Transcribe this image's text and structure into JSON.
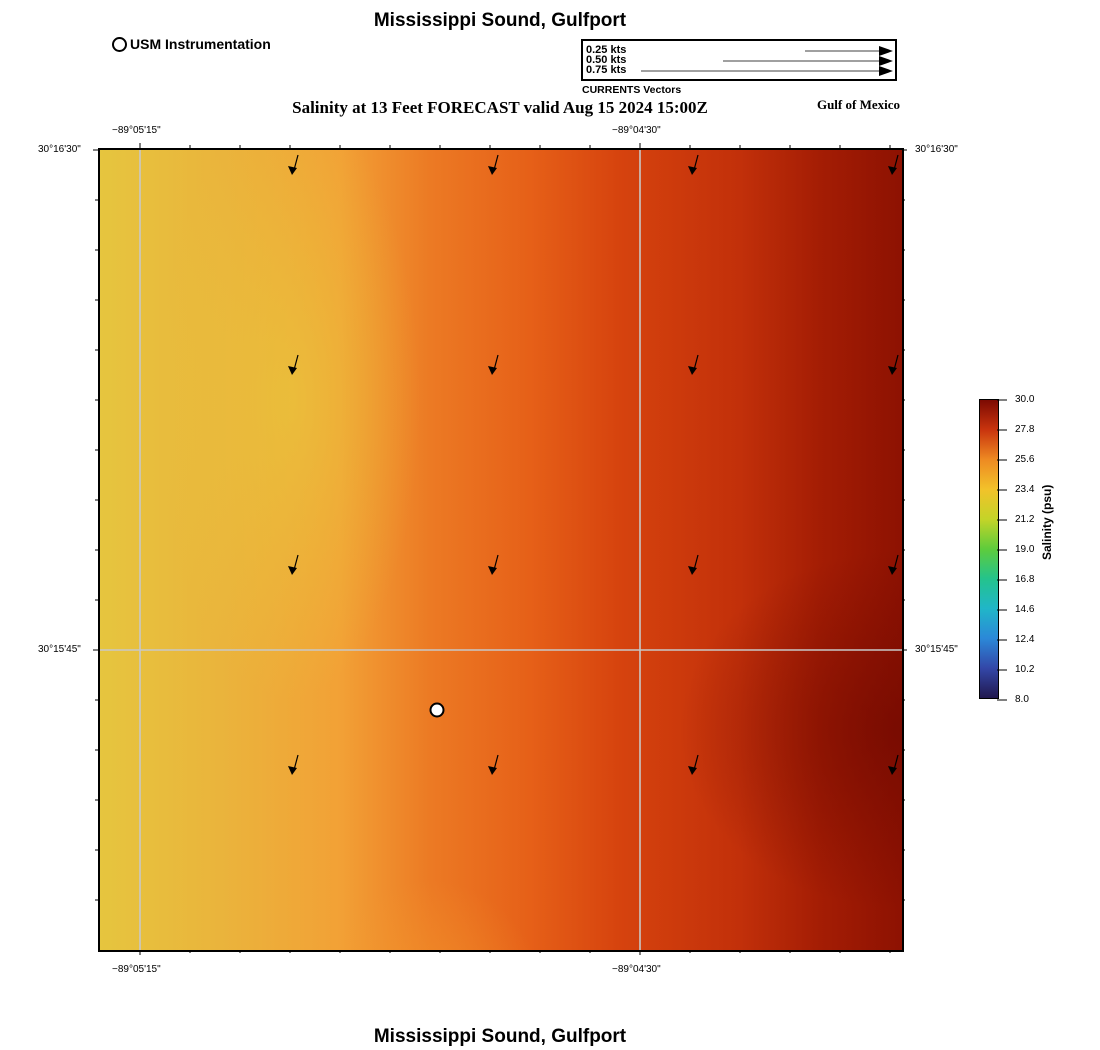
{
  "map": {
    "title": "Mississippi Sound, Gulfport",
    "subtitle": "Salinity at 13 Feet FORECAST valid Aug 15 2024 15:00Z",
    "region_label": "Gulf of Mexico",
    "bottom_title": "Mississippi Sound, Gulfport"
  },
  "legend": {
    "station_label": "USM Instrumentation",
    "vector_labels": [
      "0.25 kts",
      "0.50 kts",
      "0.75 kts"
    ],
    "vector_caption": "CURRENTS Vectors"
  },
  "axes": {
    "lon_top": [
      "−89°05'15\"",
      "−89°04'30\""
    ],
    "lon_bottom": [
      "−89°05'15\"",
      "−89°04'30\""
    ],
    "lat_left": [
      "30°16'30\"",
      "30°15'45\""
    ],
    "lat_right": [
      "30°16'30\"",
      "30°15'45\""
    ]
  },
  "colorbar": {
    "label": "Salinity (psu)",
    "ticks": [
      "30.0",
      "27.8",
      "25.6",
      "23.4",
      "21.2",
      "19.0",
      "16.8",
      "14.6",
      "12.4",
      "10.2",
      "8.0"
    ],
    "min": 8.0,
    "max": 30.0,
    "colors": [
      "#21184e",
      "#3347a8",
      "#2b88d8",
      "#20b6c8",
      "#24c38c",
      "#5ecc3c",
      "#c4d428",
      "#f2c22a",
      "#ee8a22",
      "#c9340e",
      "#7c0a02"
    ]
  },
  "currents": {
    "columns": 4,
    "rows": 4,
    "direction": "south-southwest"
  },
  "colors": {
    "grid_line": "#bdbdbd",
    "station_fill": "#ffffff",
    "vector": "#000000"
  }
}
